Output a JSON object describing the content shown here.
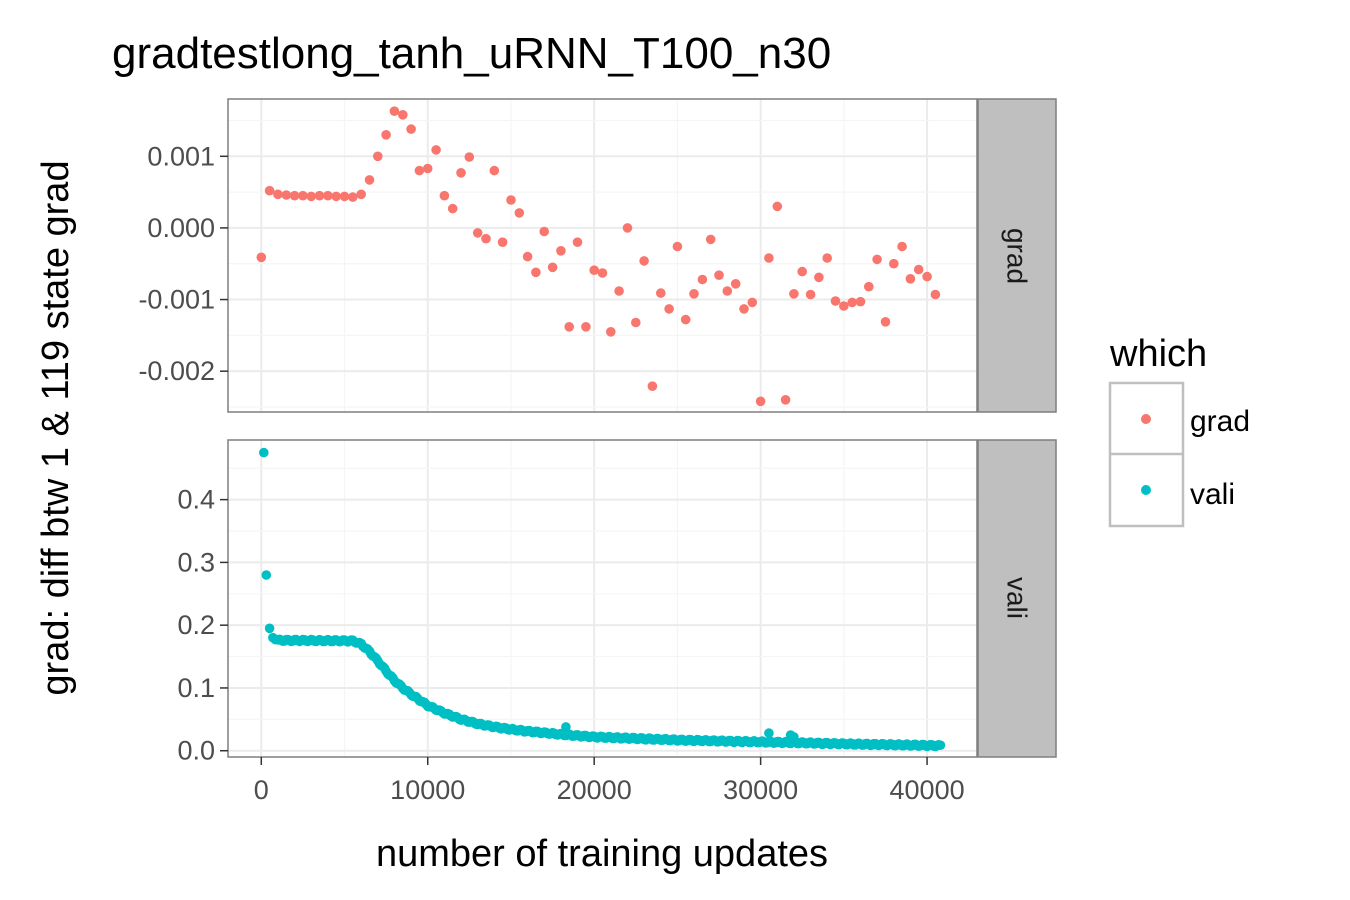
{
  "chart_data": {
    "type": "scatter",
    "title": "gradtestlong_tanh_uRNN_T100_n30",
    "xlabel": "number of training updates",
    "ylabel": "grad: diff btw 1 & 119 state grad",
    "xlim": [
      -2000,
      43000
    ],
    "x_ticks": [
      0,
      10000,
      20000,
      30000,
      40000
    ],
    "grid": true,
    "facet_layout": "vertical, free y scales, shared x",
    "legend": {
      "title": "which",
      "position": "right",
      "entries": [
        {
          "label": "grad",
          "color": "#F8766D"
        },
        {
          "label": "vali",
          "color": "#00BFC4"
        }
      ]
    },
    "panels": [
      {
        "strip": "grad",
        "series": "grad",
        "color": "#F8766D",
        "ylim": [
          -0.00257,
          0.0018
        ],
        "y_ticks": [
          0.001,
          0.0,
          -0.001,
          -0.002
        ],
        "y_tick_labels": [
          "0.001",
          "0.000",
          "-0.001",
          "-0.002"
        ],
        "points": [
          [
            0,
            -0.00041
          ],
          [
            500,
            0.00052
          ],
          [
            1000,
            0.00047
          ],
          [
            1500,
            0.00046
          ],
          [
            2000,
            0.00045
          ],
          [
            2500,
            0.00045
          ],
          [
            3000,
            0.00044
          ],
          [
            3500,
            0.00045
          ],
          [
            4000,
            0.00045
          ],
          [
            4500,
            0.00044
          ],
          [
            5000,
            0.00044
          ],
          [
            5500,
            0.00043
          ],
          [
            6000,
            0.00047
          ],
          [
            6500,
            0.00067
          ],
          [
            7000,
            0.001
          ],
          [
            7500,
            0.0013
          ],
          [
            8000,
            0.00163
          ],
          [
            8500,
            0.00158
          ],
          [
            9000,
            0.00138
          ],
          [
            9500,
            0.0008
          ],
          [
            10000,
            0.00083
          ],
          [
            10500,
            0.00109
          ],
          [
            11000,
            0.00045
          ],
          [
            11500,
            0.00027
          ],
          [
            12000,
            0.00077
          ],
          [
            12500,
            0.00099
          ],
          [
            13000,
            -7e-05
          ],
          [
            13500,
            -0.00015
          ],
          [
            14000,
            0.0008
          ],
          [
            14500,
            -0.0002
          ],
          [
            15000,
            0.00039
          ],
          [
            15500,
            0.00021
          ],
          [
            16000,
            -0.0004
          ],
          [
            16500,
            -0.00062
          ],
          [
            17000,
            -5e-05
          ],
          [
            17500,
            -0.00055
          ],
          [
            18000,
            -0.00032
          ],
          [
            18500,
            -0.00138
          ],
          [
            19000,
            -0.0002
          ],
          [
            19500,
            -0.00138
          ],
          [
            20000,
            -0.00059
          ],
          [
            20500,
            -0.00063
          ],
          [
            21000,
            -0.00145
          ],
          [
            21500,
            -0.00088
          ],
          [
            22000,
            0.0
          ],
          [
            22500,
            -0.00132
          ],
          [
            23000,
            -0.00046
          ],
          [
            23500,
            -0.00221
          ],
          [
            24000,
            -0.00091
          ],
          [
            24500,
            -0.00113
          ],
          [
            25000,
            -0.00026
          ],
          [
            25500,
            -0.00128
          ],
          [
            26000,
            -0.00092
          ],
          [
            26500,
            -0.00072
          ],
          [
            27000,
            -0.00016
          ],
          [
            27500,
            -0.00066
          ],
          [
            28000,
            -0.00088
          ],
          [
            28500,
            -0.00078
          ],
          [
            29000,
            -0.00113
          ],
          [
            29500,
            -0.00104
          ],
          [
            30000,
            -0.00242
          ],
          [
            30500,
            -0.00042
          ],
          [
            31000,
            0.0003
          ],
          [
            31500,
            -0.0024
          ],
          [
            32000,
            -0.00092
          ],
          [
            32500,
            -0.00061
          ],
          [
            33000,
            -0.00093
          ],
          [
            33500,
            -0.00069
          ],
          [
            34000,
            -0.00042
          ],
          [
            34500,
            -0.00102
          ],
          [
            35000,
            -0.00109
          ],
          [
            35500,
            -0.00104
          ],
          [
            36000,
            -0.00103
          ],
          [
            36500,
            -0.00082
          ],
          [
            37000,
            -0.00044
          ],
          [
            37500,
            -0.00131
          ],
          [
            38000,
            -0.0005
          ],
          [
            38500,
            -0.00026
          ],
          [
            39000,
            -0.00071
          ],
          [
            39500,
            -0.00058
          ],
          [
            40000,
            -0.00068
          ],
          [
            40500,
            -0.00093
          ]
        ]
      },
      {
        "strip": "vali",
        "series": "vali",
        "color": "#00BFC4",
        "ylim": [
          -0.01,
          0.495
        ],
        "y_ticks": [
          0.0,
          0.1,
          0.2,
          0.3,
          0.4
        ],
        "y_tick_labels": [
          "0.0",
          "0.1",
          "0.2",
          "0.3",
          "0.4"
        ],
        "x_range": [
          1000,
          40800
        ],
        "x_step": 100,
        "curve_knots": [
          [
            1000,
            0.176
          ],
          [
            5500,
            0.175
          ],
          [
            6000,
            0.17
          ],
          [
            6500,
            0.158
          ],
          [
            7000,
            0.143
          ],
          [
            7500,
            0.127
          ],
          [
            8000,
            0.112
          ],
          [
            8500,
            0.1
          ],
          [
            9000,
            0.09
          ],
          [
            10000,
            0.072
          ],
          [
            11000,
            0.06
          ],
          [
            12000,
            0.05
          ],
          [
            13000,
            0.043
          ],
          [
            14000,
            0.038
          ],
          [
            15000,
            0.034
          ],
          [
            16000,
            0.031
          ],
          [
            18000,
            0.026
          ],
          [
            20000,
            0.022
          ],
          [
            22000,
            0.02
          ],
          [
            25000,
            0.017
          ],
          [
            30000,
            0.014
          ],
          [
            35000,
            0.011
          ],
          [
            40800,
            0.008
          ]
        ],
        "extra_points": [
          [
            150,
            0.475
          ],
          [
            300,
            0.28
          ],
          [
            500,
            0.195
          ],
          [
            700,
            0.18
          ],
          [
            850,
            0.177
          ],
          [
            18300,
            0.038
          ],
          [
            30500,
            0.028
          ],
          [
            31800,
            0.025
          ],
          [
            32000,
            0.022
          ]
        ]
      }
    ]
  }
}
